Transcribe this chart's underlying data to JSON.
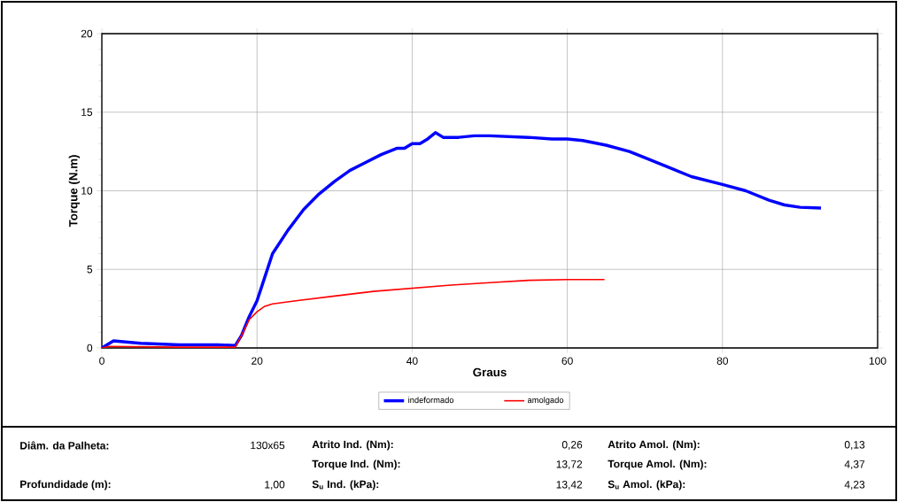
{
  "chart_data": {
    "type": "line",
    "xlabel": "Graus",
    "ylabel": "Torque (N.m)",
    "xlim": [
      0,
      100
    ],
    "xticks": [
      0,
      20,
      40,
      60,
      80,
      100
    ],
    "ylim": [
      0,
      20
    ],
    "yticks": [
      0,
      5,
      10,
      15,
      20
    ],
    "grid": true,
    "legend": "bottom",
    "marker": "none",
    "line_style": "solid",
    "series": [
      {
        "name": "indeformado",
        "color": "#0000ff",
        "x": [
          0,
          1.5,
          5,
          10,
          15,
          17.2,
          18,
          19,
          20,
          21,
          22,
          24,
          26,
          28,
          30,
          32,
          34,
          36,
          38,
          39,
          40,
          41,
          42,
          43,
          44,
          46,
          48,
          50,
          55,
          58,
          60,
          62,
          65,
          68,
          70,
          73,
          76,
          80,
          83,
          86,
          88,
          90,
          92.7
        ],
        "values": [
          0,
          0.45,
          0.3,
          0.2,
          0.2,
          0.15,
          0.8,
          2.0,
          3.0,
          4.5,
          6.0,
          7.5,
          8.8,
          9.8,
          10.6,
          11.3,
          11.8,
          12.3,
          12.7,
          12.7,
          13.0,
          13.0,
          13.3,
          13.7,
          13.4,
          13.4,
          13.5,
          13.5,
          13.4,
          13.3,
          13.3,
          13.2,
          12.9,
          12.5,
          12.1,
          11.5,
          10.9,
          10.4,
          10.0,
          9.4,
          9.1,
          8.95,
          8.9
        ]
      },
      {
        "name": "amolgado",
        "color": "#ff0000",
        "x": [
          0,
          1,
          10,
          17.2,
          18,
          19,
          20,
          21,
          22,
          25,
          30,
          35,
          40,
          45,
          50,
          55,
          60,
          64.8
        ],
        "values": [
          0,
          0.1,
          0.05,
          0.05,
          0.8,
          1.8,
          2.3,
          2.65,
          2.8,
          3.0,
          3.3,
          3.6,
          3.8,
          4.0,
          4.15,
          4.3,
          4.35,
          4.35
        ]
      }
    ],
    "annotations": [
      "Diâm. da Palheta:",
      "130x65",
      "Atrito Ind. (Nm):",
      "0,26",
      "Atrito Amol. (Nm):",
      "0,13",
      "Torque Ind. (Nm):",
      "13,72",
      "Torque Amol. (Nm):",
      "4,37",
      "Profundidade (m):",
      "1,00",
      "S$_{u}$ Ind. (kPa):",
      "13,42",
      "S$_{u}$ Amol. (kPa):",
      "4,23"
    ]
  }
}
